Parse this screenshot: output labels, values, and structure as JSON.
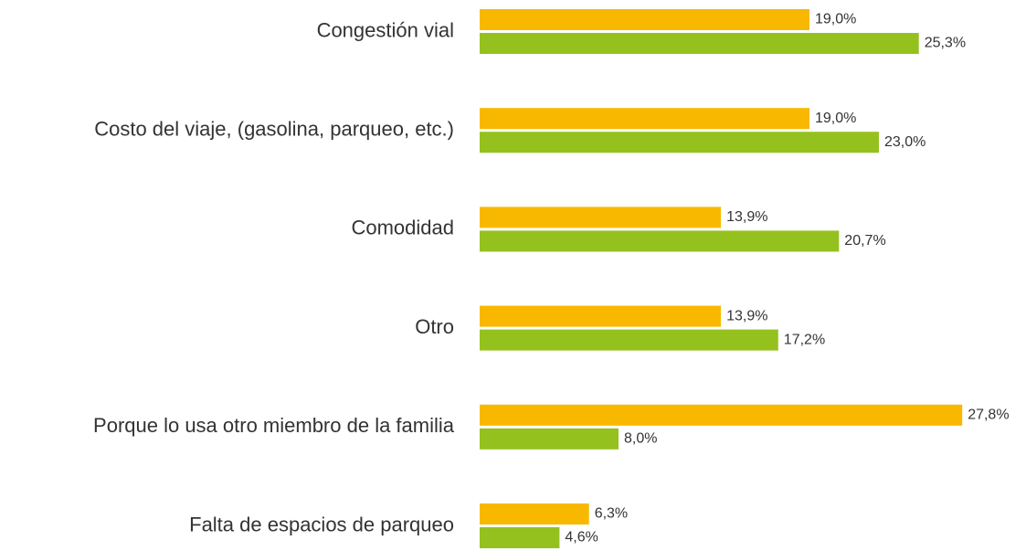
{
  "chart_data": {
    "type": "bar",
    "orientation": "horizontal",
    "categories": [
      "Congestión vial",
      "Costo del viaje, (gasolina, parqueo, etc.)",
      "Comodidad",
      "Otro",
      "Porque lo usa otro miembro de la familia",
      "Falta de espacios de parqueo"
    ],
    "series": [
      {
        "color": "#f9b800",
        "values": [
          19.0,
          19.0,
          13.9,
          13.9,
          27.8,
          6.3
        ],
        "value_labels": [
          "19,0%",
          "19,0%",
          "13,9%",
          "13,9%",
          "27,8%",
          "6,3%"
        ]
      },
      {
        "color": "#95c11f",
        "values": [
          25.3,
          23.0,
          20.7,
          17.2,
          8.0,
          4.6
        ],
        "value_labels": [
          "25,3%",
          "23,0%",
          "20,7%",
          "17,2%",
          "8,0%",
          "4,6%"
        ]
      }
    ],
    "xlim": [
      0,
      30
    ]
  }
}
